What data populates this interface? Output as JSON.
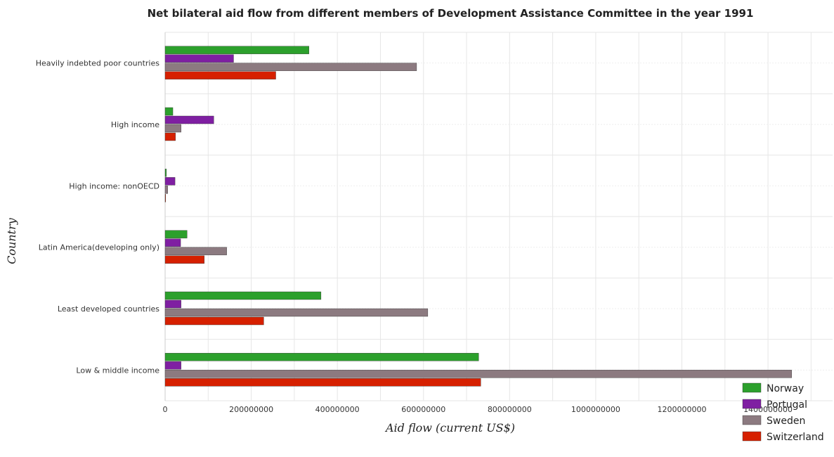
{
  "chart_data": {
    "type": "bar",
    "orientation": "horizontal",
    "title": "Net bilateral aid flow from different members of Development Assistance Committee in the year 1991",
    "xlabel": "Aid flow (current US$)",
    "ylabel": "Country",
    "xlim": [
      0,
      1550000000
    ],
    "xticks": [
      0,
      200000000,
      400000000,
      600000000,
      800000000,
      1000000000,
      1200000000,
      1400000000
    ],
    "xtick_labels": [
      "0",
      "200000000",
      "400000000",
      "600000000",
      "800000000",
      "1000000000",
      "1200000000",
      "1400000000"
    ],
    "grid": true,
    "legend_position": "bottom-right",
    "categories": [
      "Heavily indebted poor countries",
      "High income",
      "High income: nonOECD",
      "Latin America(developing only)",
      "Least developed countries",
      "Low & middle income"
    ],
    "series": [
      {
        "name": "Norway",
        "color": "#2ca02c",
        "values": [
          334000000,
          18000000,
          3000000,
          51000000,
          362000000,
          728000000
        ]
      },
      {
        "name": "Portugal",
        "color": "#7f1fa2",
        "values": [
          159000000,
          113000000,
          23000000,
          36000000,
          37000000,
          37000000
        ]
      },
      {
        "name": "Sweden",
        "color": "#8c7a80",
        "values": [
          584000000,
          37000000,
          6000000,
          143000000,
          610000000,
          1455000000
        ]
      },
      {
        "name": "Switzerland",
        "color": "#d62000",
        "values": [
          257000000,
          24000000,
          1000000,
          91000000,
          229000000,
          733000000
        ]
      }
    ]
  }
}
